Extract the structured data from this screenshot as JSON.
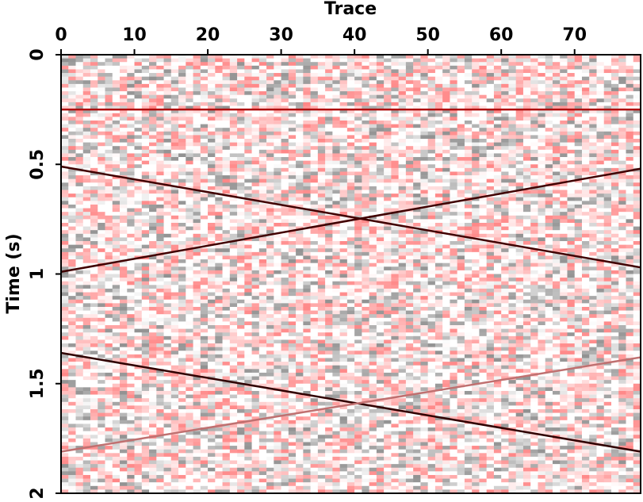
{
  "chart_data": {
    "type": "seismic",
    "x_label": "Trace",
    "y_label": "Time (s)",
    "xlim": [
      0,
      79
    ],
    "xticks": [
      0,
      10,
      20,
      30,
      40,
      50,
      60,
      70
    ],
    "ylim": [
      0,
      2
    ],
    "yticks": [
      0,
      0.5,
      1,
      1.5,
      2
    ],
    "y_reversed": true,
    "x_axis_position": "top",
    "series": [
      {
        "color": "#b01010",
        "x": [
          0,
          79
        ],
        "values": [
          0.25,
          0.25
        ]
      },
      {
        "color": "#400000",
        "x": [
          0,
          79
        ],
        "values": [
          0.51,
          0.97
        ]
      },
      {
        "color": "#400000",
        "x": [
          0,
          79
        ],
        "values": [
          0.99,
          0.52
        ]
      },
      {
        "color": "#300000",
        "x": [
          0,
          79
        ],
        "values": [
          1.36,
          1.81
        ]
      },
      {
        "color": "#c07070",
        "x": [
          0,
          79
        ],
        "values": [
          1.81,
          1.38
        ]
      }
    ]
  }
}
